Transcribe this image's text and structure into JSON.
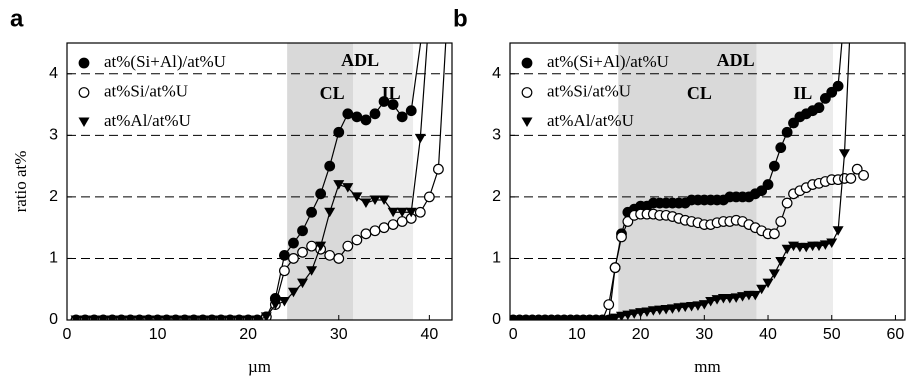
{
  "chart_data": [
    {
      "type": "line",
      "panel": "a",
      "xlabel": "µm",
      "ylabel": "ratio at%",
      "xlim": [
        0,
        42.5
      ],
      "xticks": [
        0,
        10,
        20,
        30,
        40
      ],
      "ylim": [
        0,
        4.5
      ],
      "yticks": [
        0,
        1,
        2,
        3,
        4
      ],
      "grid": true,
      "span_label": "ADL",
      "regions": [
        {
          "label": "CL",
          "xlim": [
            24.3,
            31.6
          ],
          "color": "#d9d9d9"
        },
        {
          "label": "IL",
          "xlim": [
            31.6,
            38.2
          ],
          "color": "#ececec"
        }
      ],
      "series": [
        {
          "name": "at%(Si+Al)/at%U",
          "marker": "filled-circle",
          "color": "#000",
          "x": [
            1,
            2,
            3,
            4,
            5,
            6,
            7,
            8,
            9,
            10,
            11,
            12,
            13,
            14,
            15,
            16,
            17,
            18,
            19,
            20,
            21,
            22,
            23,
            24,
            25,
            26,
            27,
            28,
            29,
            30,
            31,
            32,
            33,
            34,
            35,
            36,
            37,
            38,
            39.5
          ],
          "values": [
            0,
            0,
            0,
            0,
            0,
            0,
            0,
            0,
            0,
            0,
            0,
            0,
            0,
            0,
            0,
            0,
            0,
            0,
            0,
            0,
            0,
            0.05,
            0.35,
            1.05,
            1.25,
            1.45,
            1.75,
            2.05,
            2.5,
            3.05,
            3.35,
            3.3,
            3.25,
            3.35,
            3.55,
            3.5,
            3.3,
            3.4,
            5
          ]
        },
        {
          "name": "at%Si/at%U",
          "marker": "open-circle",
          "color": "#000",
          "x": [
            1,
            2,
            3,
            4,
            5,
            6,
            7,
            8,
            9,
            10,
            11,
            12,
            13,
            14,
            15,
            16,
            17,
            18,
            19,
            20,
            21,
            22,
            23,
            24,
            25,
            26,
            27,
            28,
            29,
            30,
            31,
            32,
            33,
            34,
            35,
            36,
            37,
            38,
            39,
            40,
            41,
            42
          ],
          "values": [
            0,
            0,
            0,
            0,
            0,
            0,
            0,
            0,
            0,
            0,
            0,
            0,
            0,
            0,
            0,
            0,
            0,
            0,
            0,
            0,
            0,
            0.05,
            0.25,
            0.8,
            1.0,
            1.1,
            1.2,
            1.15,
            1.05,
            1.0,
            1.2,
            1.3,
            1.4,
            1.45,
            1.5,
            1.55,
            1.6,
            1.65,
            1.75,
            2.0,
            2.45,
            5
          ]
        },
        {
          "name": "at%Al/at%U",
          "marker": "triangle-down",
          "color": "#000",
          "x": [
            1,
            2,
            3,
            4,
            5,
            6,
            7,
            8,
            9,
            10,
            11,
            12,
            13,
            14,
            15,
            16,
            17,
            18,
            19,
            20,
            21,
            22,
            23,
            24,
            25,
            26,
            27,
            28,
            29,
            30,
            31,
            32,
            33,
            34,
            35,
            36,
            37,
            38,
            39,
            40
          ],
          "values": [
            0,
            0,
            0,
            0,
            0,
            0,
            0,
            0,
            0,
            0,
            0,
            0,
            0,
            0,
            0,
            0,
            0,
            0,
            0,
            0,
            0,
            0.05,
            0.25,
            0.3,
            0.45,
            0.6,
            0.8,
            1.2,
            1.75,
            2.2,
            2.15,
            2.0,
            1.9,
            1.95,
            1.95,
            1.75,
            1.75,
            1.75,
            2.95,
            5
          ]
        }
      ]
    },
    {
      "type": "line",
      "panel": "b",
      "xlabel": "mm",
      "xlim": [
        -0.5,
        61.5
      ],
      "xticks": [
        0,
        10,
        20,
        30,
        40,
        50,
        60
      ],
      "ylim": [
        0,
        4.5
      ],
      "yticks": [
        0,
        1,
        2,
        3,
        4
      ],
      "grid": true,
      "span_label": "ADL",
      "regions": [
        {
          "label": "CL",
          "xlim": [
            16.5,
            38.2
          ],
          "color": "#d9d9d9"
        },
        {
          "label": "IL",
          "xlim": [
            38.2,
            50.2
          ],
          "color": "#ececec"
        }
      ],
      "series": [
        {
          "name": "at%(Si+Al)/at%U",
          "marker": "filled-circle",
          "color": "#000",
          "x": [
            0,
            1,
            2,
            3,
            4,
            5,
            6,
            7,
            8,
            9,
            10,
            11,
            12,
            13,
            14,
            15,
            16,
            17,
            18,
            19,
            20,
            21,
            22,
            23,
            24,
            25,
            26,
            27,
            28,
            29,
            30,
            31,
            32,
            33,
            34,
            35,
            36,
            37,
            38,
            39,
            40,
            41,
            42,
            43,
            44,
            45,
            46,
            47,
            48,
            49,
            50,
            51,
            52
          ],
          "values": [
            0,
            0,
            0,
            0,
            0,
            0,
            0,
            0,
            0,
            0,
            0,
            0,
            0,
            0,
            0,
            0,
            0.85,
            1.4,
            1.75,
            1.8,
            1.85,
            1.85,
            1.9,
            1.9,
            1.9,
            1.9,
            1.9,
            1.9,
            1.95,
            1.95,
            1.95,
            1.95,
            1.95,
            1.95,
            2.0,
            2.0,
            2.0,
            2.0,
            2.05,
            2.1,
            2.2,
            2.5,
            2.8,
            3.05,
            3.2,
            3.3,
            3.35,
            3.4,
            3.45,
            3.6,
            3.7,
            3.8,
            5
          ]
        },
        {
          "name": "at%Si/at%U",
          "marker": "open-circle",
          "color": "#000",
          "x": [
            0,
            1,
            2,
            3,
            4,
            5,
            6,
            7,
            8,
            9,
            10,
            11,
            12,
            13,
            14,
            15,
            16,
            17,
            18,
            19,
            20,
            21,
            22,
            23,
            24,
            25,
            26,
            27,
            28,
            29,
            30,
            31,
            32,
            33,
            34,
            35,
            36,
            37,
            38,
            39,
            40,
            41,
            42,
            43,
            44,
            45,
            46,
            47,
            48,
            49,
            50,
            51,
            52,
            53,
            54,
            55
          ],
          "values": [
            0,
            0,
            0,
            0,
            0,
            0,
            0,
            0,
            0,
            0,
            0,
            0,
            0,
            0,
            0,
            0.25,
            0.85,
            1.35,
            1.6,
            1.7,
            1.72,
            1.72,
            1.72,
            1.7,
            1.7,
            1.68,
            1.65,
            1.62,
            1.6,
            1.58,
            1.55,
            1.55,
            1.58,
            1.6,
            1.6,
            1.62,
            1.6,
            1.55,
            1.5,
            1.45,
            1.4,
            1.4,
            1.6,
            1.9,
            2.05,
            2.1,
            2.15,
            2.2,
            2.22,
            2.25,
            2.28,
            2.28,
            2.3,
            2.3,
            2.45,
            2.35
          ]
        },
        {
          "name": "at%Al/at%U",
          "marker": "triangle-down",
          "color": "#000",
          "x": [
            0,
            1,
            2,
            3,
            4,
            5,
            6,
            7,
            8,
            9,
            10,
            11,
            12,
            13,
            14,
            15,
            16,
            17,
            18,
            19,
            20,
            21,
            22,
            23,
            24,
            25,
            26,
            27,
            28,
            29,
            30,
            31,
            32,
            33,
            34,
            35,
            36,
            37,
            38,
            39,
            40,
            41,
            42,
            43,
            44,
            45,
            46,
            47,
            48,
            49,
            50,
            51,
            52,
            53
          ],
          "values": [
            0,
            0,
            0,
            0,
            0,
            0,
            0,
            0,
            0,
            0,
            0,
            0,
            0,
            0,
            0,
            0,
            0.03,
            0.06,
            0.08,
            0.1,
            0.12,
            0.13,
            0.15,
            0.16,
            0.17,
            0.18,
            0.2,
            0.21,
            0.22,
            0.23,
            0.25,
            0.3,
            0.33,
            0.35,
            0.35,
            0.36,
            0.38,
            0.4,
            0.4,
            0.5,
            0.6,
            0.75,
            0.95,
            1.15,
            1.2,
            1.18,
            1.18,
            1.2,
            1.2,
            1.22,
            1.25,
            1.45,
            2.7,
            5
          ]
        }
      ]
    }
  ]
}
